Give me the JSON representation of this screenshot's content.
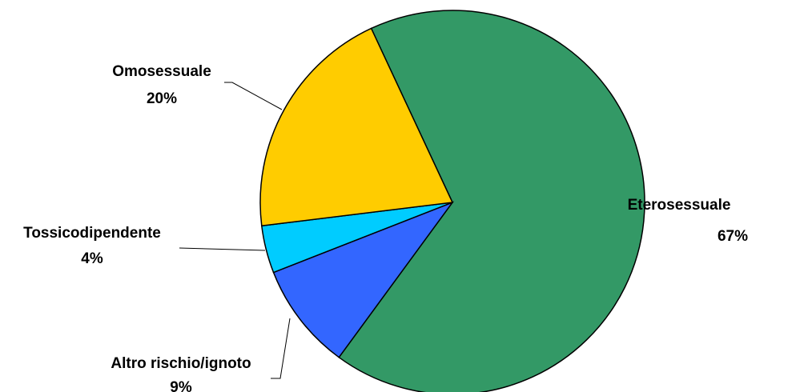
{
  "chart_data": {
    "type": "pie",
    "title": "",
    "slices": [
      {
        "label": "Eterosessuale",
        "value": 67,
        "display": "67%",
        "color": "#339966"
      },
      {
        "label": "Altro rischio/ignoto",
        "value": 9,
        "display": "9%",
        "color": "#3366FF"
      },
      {
        "label": "Tossicodipendente",
        "value": 4,
        "display": "4%",
        "color": "#00CCFF"
      },
      {
        "label": "Omosessuale",
        "value": 20,
        "display": "20%",
        "color": "#FFCC00"
      }
    ],
    "legend": "none",
    "labels": "outside-with-leader-lines"
  }
}
